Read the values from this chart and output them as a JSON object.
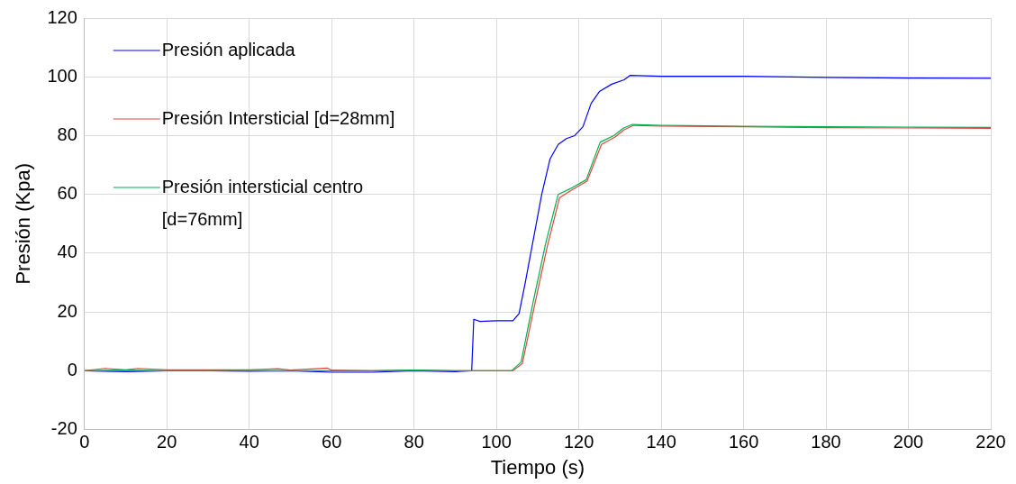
{
  "chart_data": {
    "type": "line",
    "xlabel": "Tiempo (s)",
    "ylabel": "Presión (Kpa)",
    "xlim": [
      0,
      220
    ],
    "xticks": [
      0,
      20,
      40,
      60,
      80,
      100,
      120,
      140,
      160,
      180,
      200,
      220
    ],
    "ylim": [
      -20,
      120
    ],
    "yticks": [
      -20,
      0,
      20,
      40,
      60,
      80,
      100,
      120
    ],
    "grid": true,
    "legend": "top left",
    "marker": "none",
    "line_style": "solid",
    "series": [
      {
        "name": "Presión aplicada",
        "color": "#0000ff",
        "x": [
          0,
          10,
          20,
          30,
          40,
          50,
          60,
          70,
          80,
          90,
          94,
          94.5,
          96,
          100,
          104,
          105.5,
          107,
          109,
          111,
          113,
          115,
          117,
          119,
          121,
          123,
          125,
          128,
          131,
          132.5,
          140,
          160,
          180,
          200,
          220
        ],
        "values": [
          0,
          -0.3,
          0,
          0,
          -0.2,
          0,
          -0.5,
          -0.5,
          0,
          -0.3,
          0,
          17.5,
          16.8,
          17,
          17,
          19.5,
          30,
          45,
          60,
          72,
          77,
          79,
          80,
          83,
          91,
          95,
          97.5,
          99,
          100.5,
          100.2,
          100.2,
          99.8,
          99.6,
          99.5
        ]
      },
      {
        "name": "Presión Intersticial [d=28mm]",
        "color": "#e0463c",
        "x": [
          0,
          5,
          10,
          13,
          20,
          30,
          40,
          47,
          50,
          59,
          60,
          70,
          80,
          90,
          100,
          104,
          106.3,
          109.3,
          112.3,
          115.3,
          118.3,
          122,
          125.5,
          128.8,
          131,
          133.3,
          140,
          160,
          180,
          200,
          220
        ],
        "values": [
          0,
          0.8,
          0.3,
          0.8,
          0.3,
          0.3,
          0.3,
          0.7,
          0.2,
          0.9,
          0.2,
          0,
          0.2,
          0,
          0,
          0,
          2.5,
          22.5,
          42,
          58.8,
          61.5,
          64.5,
          77,
          79.5,
          82,
          83.5,
          83.2,
          83,
          82.7,
          82.6,
          82.5
        ]
      },
      {
        "name": "Presión intersticial centro [d=76mm]",
        "color": "#00b050",
        "x": [
          0,
          10,
          20,
          30,
          40,
          50,
          60,
          70,
          80,
          90,
          100,
          103.7,
          106,
          109,
          112,
          115,
          118,
          121.8,
          125.2,
          128.5,
          130.8,
          133,
          140,
          160,
          180,
          200,
          220
        ],
        "values": [
          0,
          0.2,
          0,
          0,
          0.1,
          0,
          0,
          0,
          0.2,
          0,
          0,
          0,
          3,
          24,
          43.6,
          60,
          62,
          65,
          77.8,
          80,
          82.5,
          83.8,
          83.5,
          83.2,
          83,
          82.9,
          82.8
        ]
      }
    ]
  }
}
